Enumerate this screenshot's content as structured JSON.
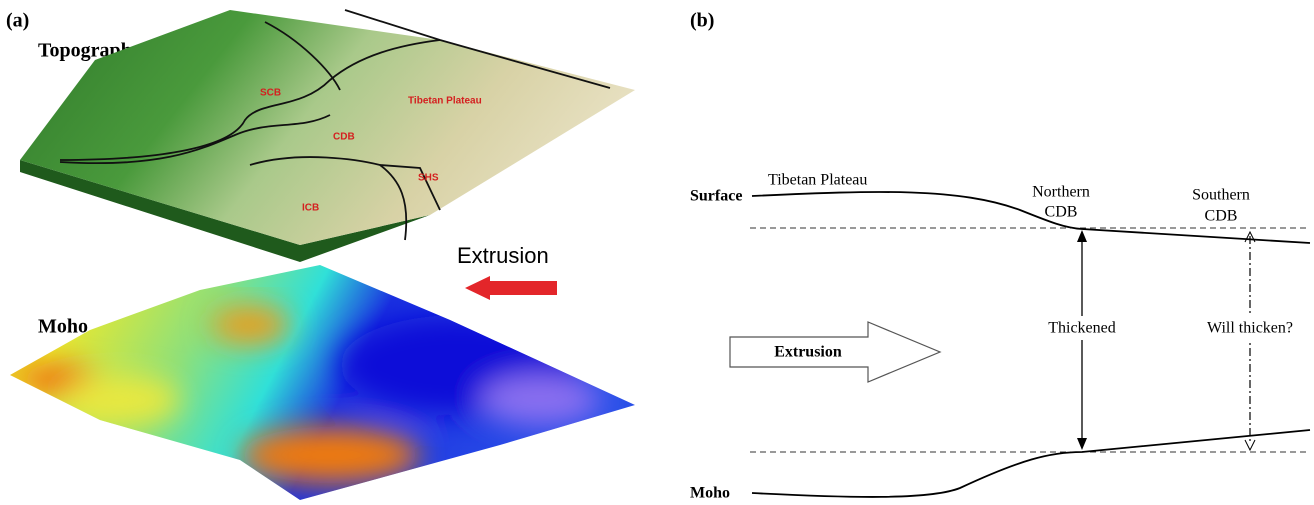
{
  "panel_a": {
    "label": "(a)",
    "topography_label": "Topography",
    "regions": [
      "SCB",
      "Tibetan Plateau",
      "CDB",
      "SHS",
      "ICB"
    ],
    "extrusion_label": "Extrusion",
    "moho_label": "Moho"
  },
  "panel_b": {
    "label": "(b)",
    "surface_label": "Surface",
    "plateau_label": "Tibetan Plateau",
    "northern": [
      "Northern",
      "CDB"
    ],
    "southern": [
      "Southern",
      "CDB"
    ],
    "thickened": "Thickened",
    "will_thicken": "Will thicken?",
    "extrusion_label": "Extrusion",
    "moho_label": "Moho"
  }
}
